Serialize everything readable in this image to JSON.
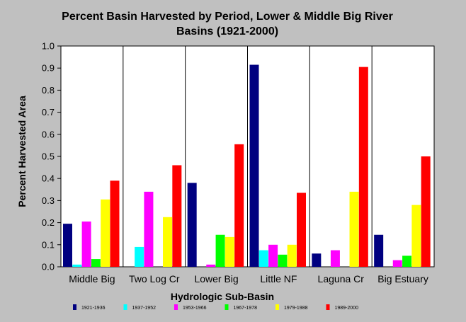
{
  "chart_data": {
    "type": "bar",
    "title_line1": "Percent Basin Harvested by Period, Lower & Middle Big River",
    "title_line2": "Basins (1921-2000)",
    "xlabel": "Hydrologic Sub-Basin",
    "ylabel": "Percent Harvested Area",
    "ylim": [
      0,
      1.0
    ],
    "yticks": [
      "0.0",
      "0.1",
      "0.2",
      "0.3",
      "0.4",
      "0.5",
      "0.6",
      "0.7",
      "0.8",
      "0.9",
      "1.0"
    ],
    "grid": false,
    "legend_position": "bottom",
    "categories": [
      "Middle Big",
      "Two Log Cr",
      "Lower Big",
      "Little NF",
      "Laguna Cr",
      "Big Estuary"
    ],
    "series": [
      {
        "name": "1921-1936",
        "color": "#000080",
        "values": [
          0.195,
          0.0,
          0.38,
          0.915,
          0.06,
          0.145
        ]
      },
      {
        "name": "1937-1952",
        "color": "#00ffff",
        "values": [
          0.01,
          0.09,
          0.0,
          0.075,
          0.0,
          0.0
        ]
      },
      {
        "name": "1953-1966",
        "color": "#ff00ff",
        "values": [
          0.205,
          0.34,
          0.01,
          0.1,
          0.075,
          0.03
        ]
      },
      {
        "name": "1967-1978",
        "color": "#00ff00",
        "values": [
          0.035,
          0.0,
          0.145,
          0.055,
          0.0,
          0.05
        ]
      },
      {
        "name": "1979-1988",
        "color": "#ffff00",
        "values": [
          0.305,
          0.225,
          0.135,
          0.1,
          0.34,
          0.28
        ]
      },
      {
        "name": "1989-2000",
        "color": "#ff0000",
        "values": [
          0.39,
          0.46,
          0.555,
          0.335,
          0.905,
          0.5
        ]
      }
    ]
  }
}
